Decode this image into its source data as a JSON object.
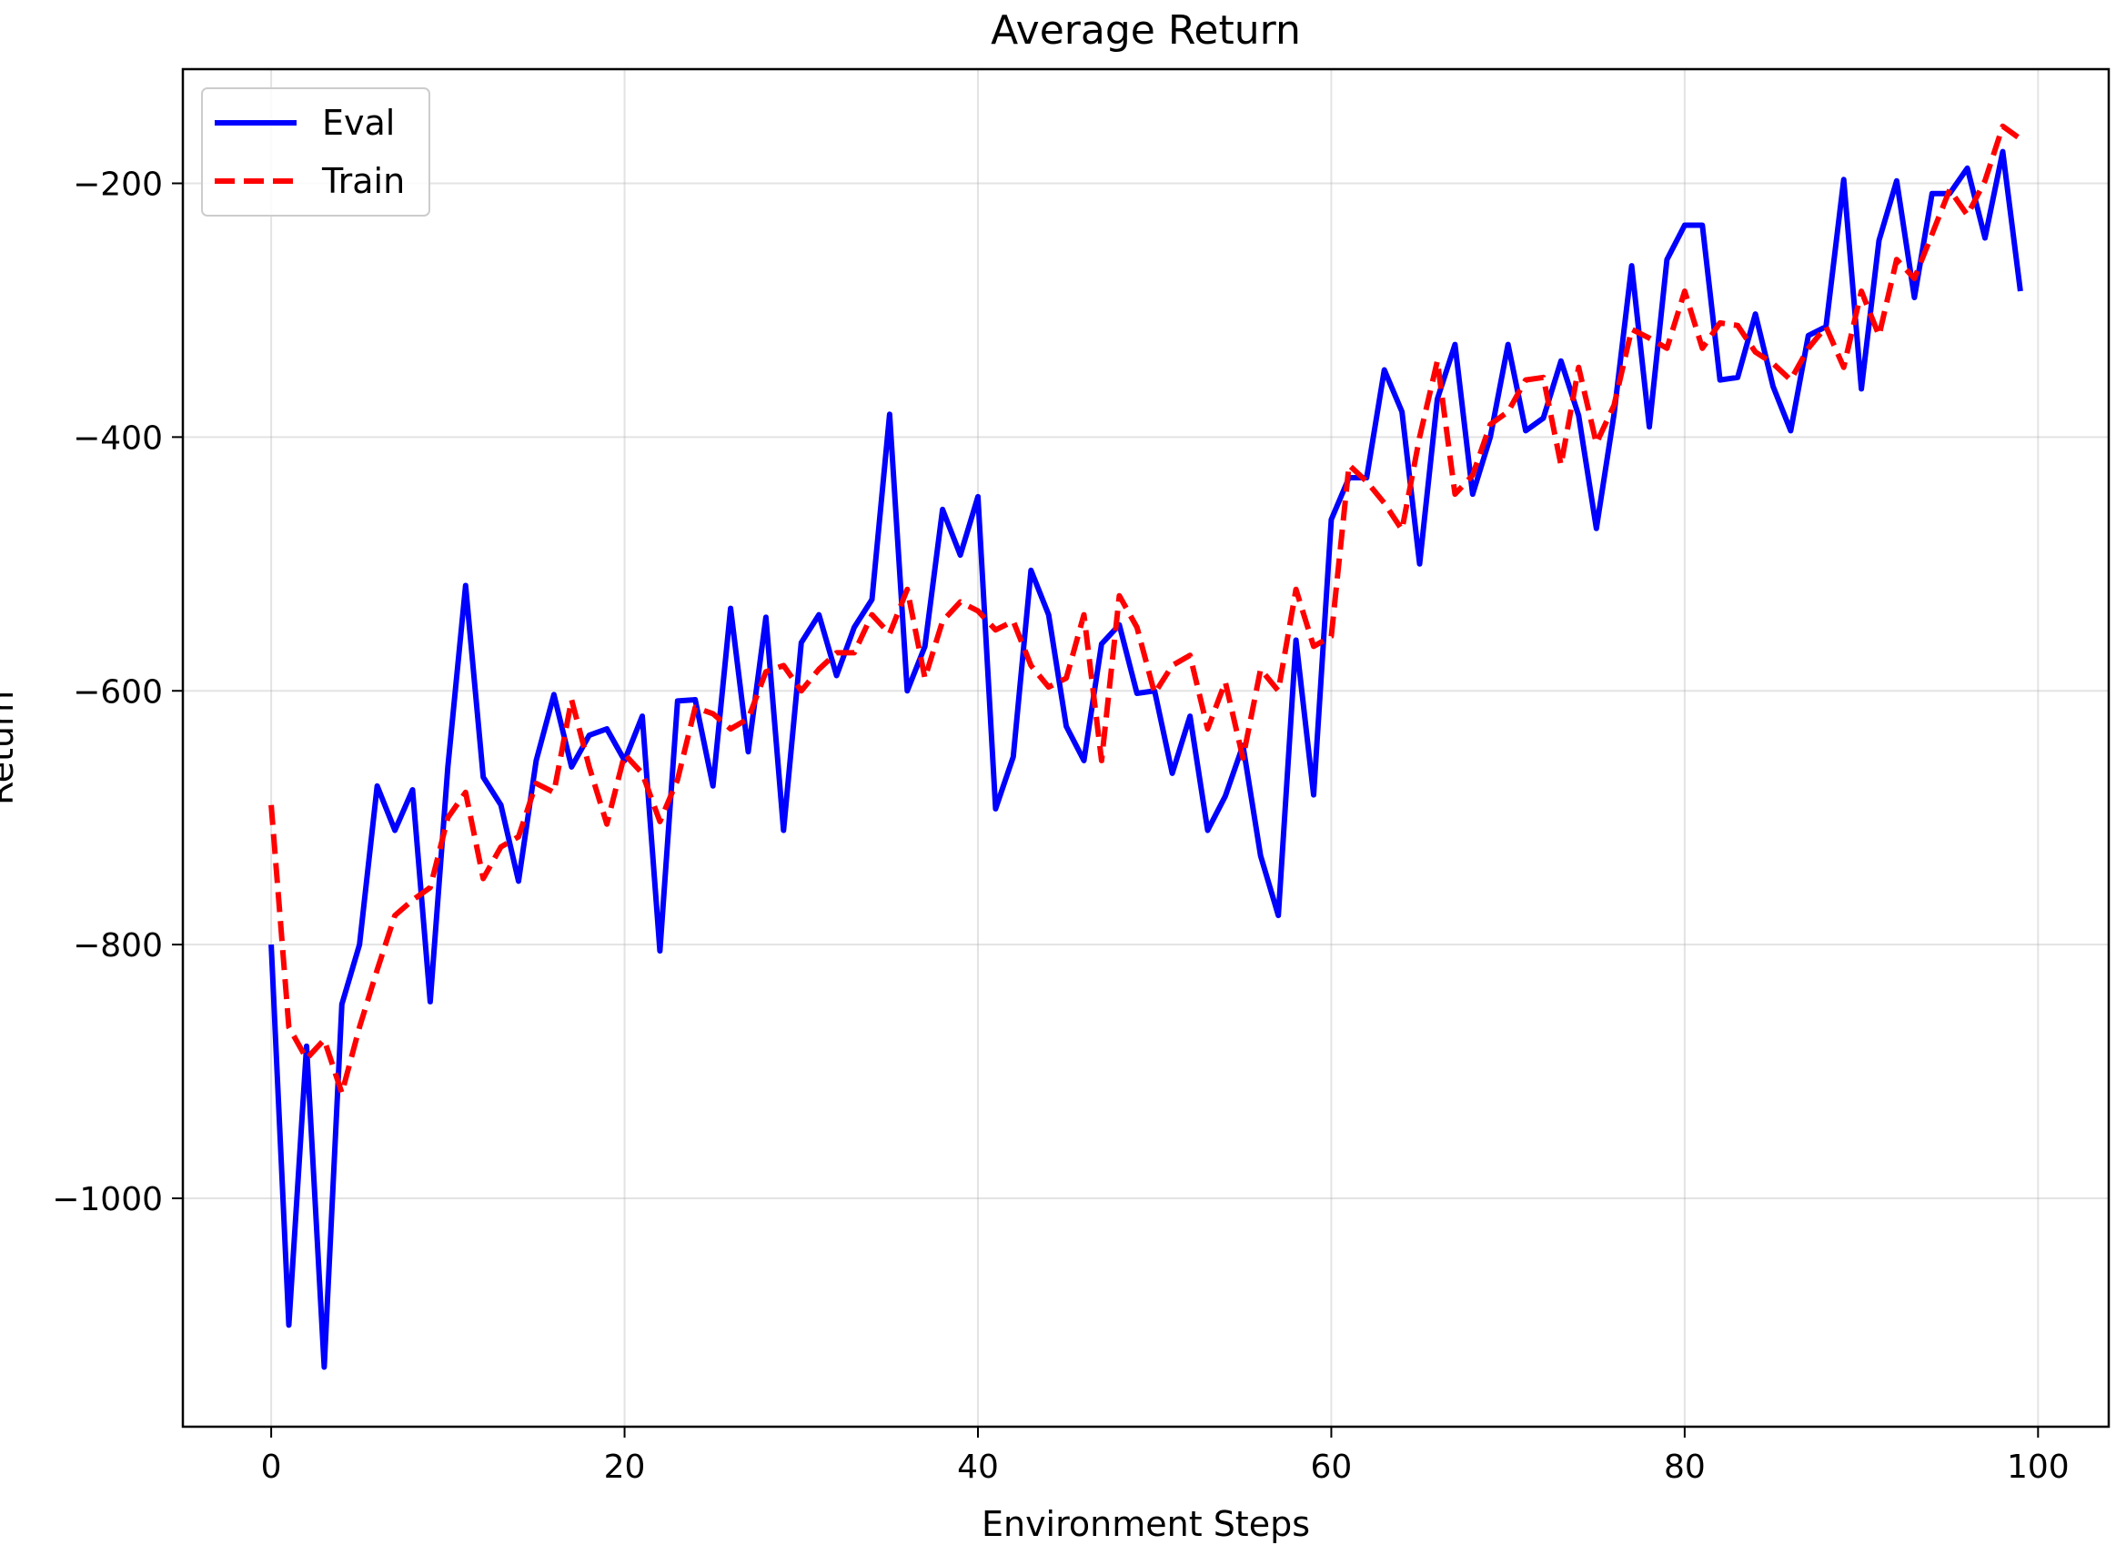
{
  "chart_data": {
    "type": "line",
    "title": "Average Return",
    "xlabel": "Environment Steps",
    "ylabel": "Return",
    "xlim": [
      -5,
      104
    ],
    "ylim": [
      -1180,
      -110
    ],
    "xticks": [
      0,
      20,
      40,
      60,
      80,
      100
    ],
    "yticks": [
      -1000,
      -800,
      -600,
      -400,
      -200
    ],
    "xtick_labels": [
      "0",
      "20",
      "40",
      "60",
      "80",
      "100"
    ],
    "ytick_labels": [
      "−1000",
      "−800",
      "−600",
      "−400",
      "−200"
    ],
    "grid": true,
    "legend_position": "top-left",
    "series": [
      {
        "name": "Eval",
        "color": "#0000ff",
        "style": "solid",
        "values": [
          -800,
          -1100,
          -880,
          -1133,
          -847,
          -800,
          -675,
          -710,
          -678,
          -845,
          -660,
          -517,
          -668,
          -690,
          -750,
          -655,
          -603,
          -660,
          -635,
          -630,
          -655,
          -620,
          -805,
          -608,
          -607,
          -675,
          -535,
          -648,
          -542,
          -710,
          -562,
          -540,
          -588,
          -550,
          -528,
          -382,
          -600,
          -565,
          -457,
          -493,
          -447,
          -693,
          -652,
          -505,
          -540,
          -628,
          -655,
          -563,
          -548,
          -602,
          -600,
          -665,
          -620,
          -710,
          -683,
          -643,
          -730,
          -777,
          -560,
          -682,
          -465,
          -432,
          -432,
          -347,
          -380,
          -500,
          -370,
          -327,
          -445,
          -400,
          -327,
          -395,
          -385,
          -340,
          -383,
          -472,
          -382,
          -265,
          -392,
          -260,
          -233,
          -233,
          -355,
          -353,
          -303,
          -360,
          -395,
          -320,
          -313,
          -197,
          -362,
          -245,
          -198,
          -290,
          -208,
          -208,
          -188,
          -243,
          -175,
          -285
        ]
      },
      {
        "name": "Train",
        "color": "#ff0000",
        "style": "dashed",
        "values": [
          -690,
          -865,
          -890,
          -875,
          -917,
          -865,
          -820,
          -777,
          -765,
          -755,
          -700,
          -680,
          -748,
          -723,
          -715,
          -673,
          -680,
          -607,
          -660,
          -705,
          -650,
          -665,
          -703,
          -670,
          -613,
          -618,
          -630,
          -622,
          -585,
          -580,
          -600,
          -583,
          -570,
          -570,
          -540,
          -555,
          -520,
          -590,
          -545,
          -530,
          -537,
          -552,
          -545,
          -580,
          -597,
          -590,
          -540,
          -655,
          -525,
          -550,
          -602,
          -580,
          -572,
          -630,
          -593,
          -653,
          -583,
          -600,
          -520,
          -565,
          -557,
          -422,
          -435,
          -452,
          -473,
          -400,
          -340,
          -445,
          -430,
          -390,
          -380,
          -355,
          -353,
          -422,
          -345,
          -405,
          -375,
          -315,
          -322,
          -330,
          -285,
          -330,
          -310,
          -312,
          -333,
          -342,
          -355,
          -330,
          -313,
          -345,
          -285,
          -320,
          -260,
          -275,
          -240,
          -205,
          -225,
          -198,
          -155,
          -165
        ]
      }
    ]
  }
}
